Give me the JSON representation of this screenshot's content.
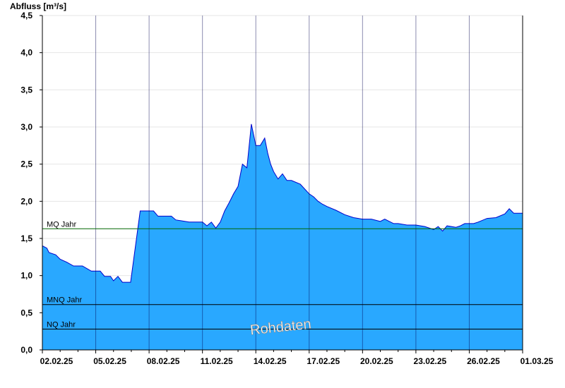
{
  "chart_data": {
    "type": "area",
    "ylabel": "Abfluss [m³/s]",
    "watermark": "Rohdaten",
    "ylim": [
      0,
      4.5
    ],
    "xlim": [
      "2025-02-02",
      "2025-03-01"
    ],
    "y_ticks": [
      "0,0",
      "0,5",
      "1,0",
      "1,5",
      "2,0",
      "2,5",
      "3,0",
      "3,5",
      "4,0",
      "4,5"
    ],
    "x_ticks": [
      "02.02.25",
      "05.02.25",
      "08.02.25",
      "11.02.25",
      "14.02.25",
      "17.02.25",
      "20.02.25",
      "23.02.25",
      "26.02.25",
      "01.03.25"
    ],
    "grid": true,
    "colors": {
      "fill": "#29a8ff",
      "line": "#0000cc",
      "mq": "#006600",
      "ref": "#000000"
    },
    "reference_lines": [
      {
        "label": "MQ Jahr",
        "value": 1.63
      },
      {
        "label": "MNQ Jahr",
        "value": 0.61
      },
      {
        "label": "NQ Jahr",
        "value": 0.28
      }
    ],
    "series": [
      {
        "x": [
          "2025-02-02 00:00",
          "2025-02-02 06:00",
          "2025-02-02 09:00",
          "2025-02-02 18:00",
          "2025-02-03 00:00",
          "2025-02-03 09:00",
          "2025-02-03 18:00",
          "2025-02-04 06:00",
          "2025-02-04 18:00",
          "2025-02-05 06:00",
          "2025-02-05 12:00",
          "2025-02-05 20:00",
          "2025-02-06 00:00",
          "2025-02-06 06:00",
          "2025-02-06 12:00",
          "2025-02-06 18:00",
          "2025-02-06 23:00",
          "2025-02-07 12:00",
          "2025-02-08 06:00",
          "2025-02-08 12:00",
          "2025-02-09 06:00",
          "2025-02-09 12:00",
          "2025-02-10 06:00",
          "2025-02-10 12:00",
          "2025-02-11 00:00",
          "2025-02-11 06:00",
          "2025-02-11 12:00",
          "2025-02-11 18:00",
          "2025-02-12 00:00",
          "2025-02-12 06:00",
          "2025-02-12 12:00",
          "2025-02-12 18:00",
          "2025-02-13 00:00",
          "2025-02-13 06:00",
          "2025-02-13 12:00",
          "2025-02-13 18:00",
          "2025-02-13 22:00",
          "2025-02-14 00:00",
          "2025-02-14 06:00",
          "2025-02-14 12:00",
          "2025-02-14 16:00",
          "2025-02-14 20:00",
          "2025-02-15 00:00",
          "2025-02-15 06:00",
          "2025-02-15 12:00",
          "2025-02-15 18:00",
          "2025-02-16 00:00",
          "2025-02-16 12:00",
          "2025-02-17 00:00",
          "2025-02-17 06:00",
          "2025-02-17 12:00",
          "2025-02-17 18:00",
          "2025-02-18 00:00",
          "2025-02-18 12:00",
          "2025-02-19 00:00",
          "2025-02-19 12:00",
          "2025-02-20 00:00",
          "2025-02-20 12:00",
          "2025-02-21 00:00",
          "2025-02-21 06:00",
          "2025-02-21 12:00",
          "2025-02-21 18:00",
          "2025-02-22 00:00",
          "2025-02-22 12:00",
          "2025-02-23 00:00",
          "2025-02-23 12:00",
          "2025-02-24 00:00",
          "2025-02-24 06:00",
          "2025-02-24 12:00",
          "2025-02-24 18:00",
          "2025-02-25 06:00",
          "2025-02-25 12:00",
          "2025-02-25 18:00",
          "2025-02-26 06:00",
          "2025-02-26 12:00",
          "2025-02-27 00:00",
          "2025-02-27 12:00",
          "2025-02-28 00:00",
          "2025-02-28 06:00",
          "2025-02-28 12:00",
          "2025-03-01 00:00"
        ],
        "values": [
          1.4,
          1.37,
          1.31,
          1.28,
          1.22,
          1.18,
          1.13,
          1.13,
          1.06,
          1.06,
          0.99,
          0.99,
          0.93,
          0.99,
          0.91,
          0.91,
          0.91,
          1.87,
          1.87,
          1.8,
          1.8,
          1.75,
          1.72,
          1.72,
          1.72,
          1.67,
          1.72,
          1.64,
          1.72,
          1.87,
          1.98,
          2.1,
          2.2,
          2.5,
          2.45,
          3.04,
          2.85,
          2.75,
          2.75,
          2.85,
          2.65,
          2.5,
          2.4,
          2.3,
          2.37,
          2.28,
          2.28,
          2.23,
          2.1,
          2.06,
          2.0,
          1.96,
          1.93,
          1.88,
          1.82,
          1.78,
          1.76,
          1.76,
          1.73,
          1.76,
          1.73,
          1.7,
          1.7,
          1.68,
          1.68,
          1.66,
          1.62,
          1.66,
          1.6,
          1.67,
          1.65,
          1.67,
          1.7,
          1.7,
          1.72,
          1.77,
          1.78,
          1.83,
          1.9,
          1.84,
          1.84
        ]
      }
    ]
  }
}
